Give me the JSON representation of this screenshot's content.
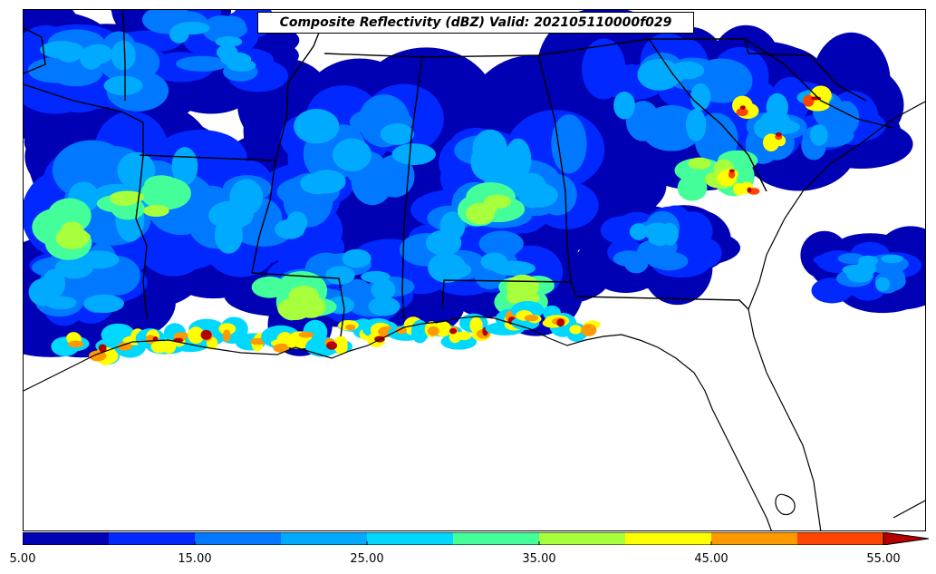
{
  "title": "Composite Reflectivity (dBZ) Valid: 202105110000f029",
  "colorbar": {
    "colors": [
      "#0000b4",
      "#0028ff",
      "#0078ff",
      "#00aaff",
      "#00d8ff",
      "#44ff99",
      "#a8ff3c",
      "#ffff00",
      "#ff9900",
      "#ff4400",
      "#b40000"
    ],
    "bounds": [
      5,
      10,
      15,
      20,
      25,
      30,
      35,
      40,
      45,
      50,
      55
    ],
    "tick_labels": [
      "5.00",
      "15.00",
      "25.00",
      "35.00",
      "45.00",
      "55.00"
    ],
    "extend": "max"
  },
  "map": {
    "region": "Southeastern United States",
    "field": "Composite Reflectivity",
    "units": "dBZ"
  }
}
